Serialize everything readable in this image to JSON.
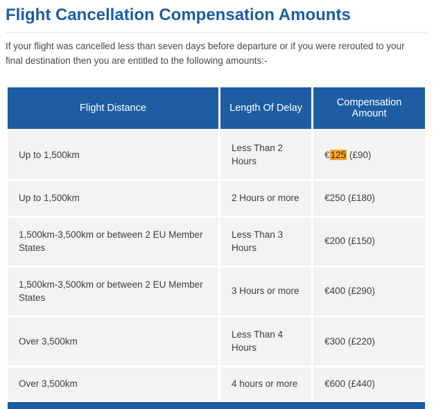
{
  "page": {
    "title": "Flight Cancellation Compensation Amounts",
    "intro": "If your flight was cancelled less than seven days before departure or if you were rerouted to your final destination then you are entitled to the following amounts:-"
  },
  "table": {
    "headers": [
      "Flight Distance",
      "Length Of Delay",
      "Compensation Amount"
    ],
    "rows": [
      {
        "distance": "Up to 1,500km",
        "delay": "Less Than 2 Hours",
        "amount_pre": "€",
        "amount_highlight": "125",
        "amount_post": " (£90)"
      },
      {
        "distance": "Up to 1,500km",
        "delay": "2 Hours or more",
        "amount": "€250 (£180)"
      },
      {
        "distance": "1,500km-3,500km or between 2 EU Member States",
        "delay": "Less Than 3 Hours",
        "amount": "€200 (£150)"
      },
      {
        "distance": "1,500km-3,500km or between 2 EU Member States",
        "delay": "3 Hours or more",
        "amount": "€400 (£290)"
      },
      {
        "distance": "Over 3,500km",
        "delay": "Less Than 4 Hours",
        "amount": "€300 (£220)"
      },
      {
        "distance": "Over 3,500km",
        "delay": "4 hours or more",
        "amount": "€600 (£440)"
      }
    ]
  },
  "colors": {
    "brand-blue": "#1d5da3",
    "row-bg": "#f3f3f3",
    "highlight": "#f7a329"
  }
}
